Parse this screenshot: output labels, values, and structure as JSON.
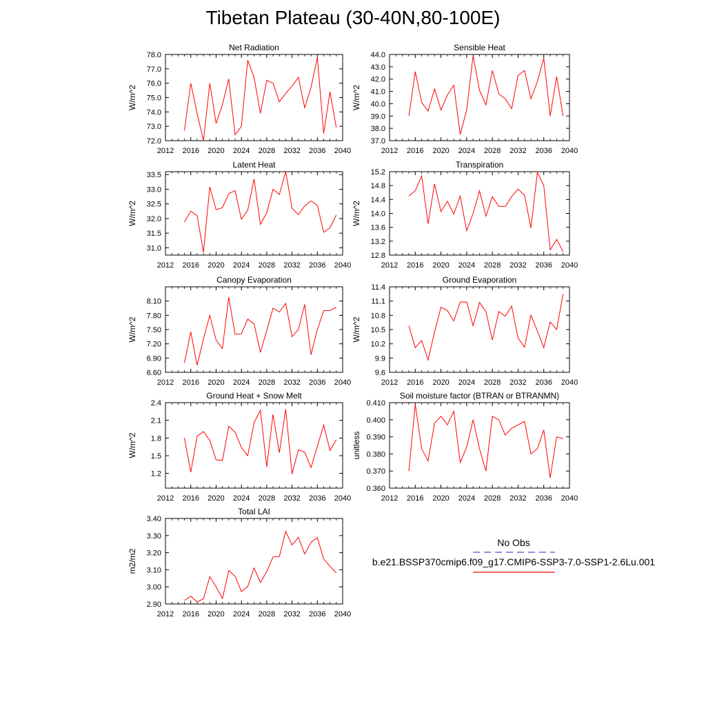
{
  "title": "Tibetan Plateau (30-40N,80-100E)",
  "legend": {
    "obs_label": "No Obs",
    "case_label": "b.e21.BSSP370cmip6.f09_g17.CMIP6-SSP3-7.0-SSP1-2.6Lu.001",
    "obs_color": "#5050c8",
    "case_color": "#ff0000"
  },
  "chart_data": [
    {
      "type": "line",
      "title": "Net Radiation",
      "xlabel": "",
      "ylabel": "W/m^2",
      "xlim": [
        2012,
        2040
      ],
      "xticks": [
        2012,
        2016,
        2020,
        2024,
        2028,
        2032,
        2036,
        2040
      ],
      "ylim": [
        72.0,
        78.0
      ],
      "yticks": [
        72.0,
        73.0,
        74.0,
        75.0,
        76.0,
        77.0,
        78.0
      ],
      "ytick_decimals": 1,
      "series": [
        {
          "color": "#ff0000",
          "x": [
            2015,
            2016,
            2017,
            2018,
            2019,
            2020,
            2021,
            2022,
            2023,
            2024,
            2025,
            2026,
            2027,
            2028,
            2029,
            2030,
            2031,
            2032,
            2033,
            2034,
            2035,
            2036,
            2037,
            2038,
            2039
          ],
          "y": [
            72.7,
            76.0,
            73.9,
            72.0,
            76.0,
            73.2,
            74.5,
            76.3,
            72.4,
            73.0,
            77.6,
            76.4,
            73.9,
            76.2,
            76.0,
            74.7,
            75.3,
            75.8,
            76.4,
            74.3,
            75.7,
            77.8,
            72.5,
            75.4,
            72.9
          ]
        }
      ]
    },
    {
      "type": "line",
      "title": "Sensible Heat",
      "xlabel": "",
      "ylabel": "W/m^2",
      "xlim": [
        2012,
        2040
      ],
      "xticks": [
        2012,
        2016,
        2020,
        2024,
        2028,
        2032,
        2036,
        2040
      ],
      "ylim": [
        37.0,
        44.0
      ],
      "yticks": [
        37.0,
        38.0,
        39.0,
        40.0,
        41.0,
        42.0,
        43.0,
        44.0
      ],
      "ytick_decimals": 1,
      "series": [
        {
          "color": "#ff0000",
          "x": [
            2015,
            2016,
            2017,
            2018,
            2019,
            2020,
            2021,
            2022,
            2023,
            2024,
            2025,
            2026,
            2027,
            2028,
            2029,
            2030,
            2031,
            2032,
            2033,
            2034,
            2035,
            2036,
            2037,
            2038,
            2039
          ],
          "y": [
            39.0,
            42.6,
            40.1,
            39.4,
            41.2,
            39.5,
            40.7,
            41.5,
            37.5,
            39.5,
            43.9,
            41.1,
            39.9,
            42.7,
            40.8,
            40.4,
            39.6,
            42.3,
            42.7,
            40.4,
            41.8,
            43.7,
            39.0,
            42.2,
            39.0
          ]
        }
      ]
    },
    {
      "type": "line",
      "title": "Latent Heat",
      "xlabel": "",
      "ylabel": "W/m^2",
      "xlim": [
        2012,
        2040
      ],
      "xticks": [
        2012,
        2016,
        2020,
        2024,
        2028,
        2032,
        2036,
        2040
      ],
      "ylim": [
        30.75,
        33.6
      ],
      "yticks": [
        31.0,
        31.5,
        32.0,
        32.5,
        33.0,
        33.5
      ],
      "ytick_decimals": 1,
      "series": [
        {
          "color": "#ff0000",
          "x": [
            2015,
            2016,
            2017,
            2018,
            2019,
            2020,
            2021,
            2022,
            2023,
            2024,
            2025,
            2026,
            2027,
            2028,
            2029,
            2030,
            2031,
            2032,
            2033,
            2034,
            2035,
            2036,
            2037,
            2038,
            2039
          ],
          "y": [
            31.88,
            32.25,
            32.1,
            30.85,
            33.08,
            32.3,
            32.37,
            32.85,
            32.95,
            31.98,
            32.28,
            33.35,
            31.8,
            32.2,
            33.0,
            32.82,
            33.6,
            32.35,
            32.13,
            32.43,
            32.6,
            32.45,
            31.53,
            31.68,
            32.12
          ]
        }
      ]
    },
    {
      "type": "line",
      "title": "Transpiration",
      "xlabel": "",
      "ylabel": "W/m^2",
      "xlim": [
        2012,
        2040
      ],
      "xticks": [
        2012,
        2016,
        2020,
        2024,
        2028,
        2032,
        2036,
        2040
      ],
      "ylim": [
        12.8,
        15.2
      ],
      "yticks": [
        12.8,
        13.2,
        13.6,
        14.0,
        14.4,
        14.8,
        15.2
      ],
      "ytick_decimals": 1,
      "series": [
        {
          "color": "#ff0000",
          "x": [
            2015,
            2016,
            2017,
            2018,
            2019,
            2020,
            2021,
            2022,
            2023,
            2024,
            2025,
            2026,
            2027,
            2028,
            2029,
            2030,
            2031,
            2032,
            2033,
            2034,
            2035,
            2036,
            2037,
            2038,
            2039
          ],
          "y": [
            14.5,
            14.65,
            15.08,
            13.7,
            14.85,
            14.05,
            14.35,
            13.98,
            14.5,
            13.5,
            14.0,
            14.65,
            13.92,
            14.48,
            14.2,
            14.2,
            14.48,
            14.7,
            14.52,
            13.58,
            15.18,
            14.8,
            12.95,
            13.25,
            12.9
          ]
        }
      ]
    },
    {
      "type": "line",
      "title": "Canopy Evaporation",
      "xlabel": "",
      "ylabel": "W/m^2",
      "xlim": [
        2012,
        2040
      ],
      "xticks": [
        2012,
        2016,
        2020,
        2024,
        2028,
        2032,
        2036,
        2040
      ],
      "ylim": [
        6.6,
        8.4
      ],
      "yticks": [
        6.6,
        6.9,
        7.2,
        7.5,
        7.8,
        8.1
      ],
      "ytick_decimals": 2,
      "series": [
        {
          "color": "#ff0000",
          "x": [
            2015,
            2016,
            2017,
            2018,
            2019,
            2020,
            2021,
            2022,
            2023,
            2024,
            2025,
            2026,
            2027,
            2028,
            2029,
            2030,
            2031,
            2032,
            2033,
            2034,
            2035,
            2036,
            2037,
            2038,
            2039
          ],
          "y": [
            6.8,
            7.45,
            6.75,
            7.3,
            7.8,
            7.28,
            7.1,
            8.18,
            7.4,
            7.41,
            7.72,
            7.62,
            7.02,
            7.48,
            7.95,
            7.87,
            8.05,
            7.35,
            7.5,
            8.03,
            6.97,
            7.5,
            7.9,
            7.9,
            7.97
          ]
        }
      ]
    },
    {
      "type": "line",
      "title": "Ground Evaporation",
      "xlabel": "",
      "ylabel": "W/m^2",
      "xlim": [
        2012,
        2040
      ],
      "xticks": [
        2012,
        2016,
        2020,
        2024,
        2028,
        2032,
        2036,
        2040
      ],
      "ylim": [
        9.6,
        11.4
      ],
      "yticks": [
        9.6,
        9.9,
        10.2,
        10.5,
        10.8,
        11.1,
        11.4
      ],
      "ytick_decimals": 1,
      "series": [
        {
          "color": "#ff0000",
          "x": [
            2015,
            2016,
            2017,
            2018,
            2019,
            2020,
            2021,
            2022,
            2023,
            2024,
            2025,
            2026,
            2027,
            2028,
            2029,
            2030,
            2031,
            2032,
            2033,
            2034,
            2035,
            2036,
            2037,
            2038,
            2039
          ],
          "y": [
            10.58,
            10.12,
            10.27,
            9.86,
            10.45,
            10.97,
            10.9,
            10.68,
            11.08,
            11.08,
            10.58,
            11.07,
            10.88,
            10.28,
            10.88,
            10.78,
            10.99,
            10.32,
            10.13,
            10.8,
            10.47,
            10.12,
            10.66,
            10.5,
            11.25
          ]
        }
      ]
    },
    {
      "type": "line",
      "title": "Ground Heat + Snow Melt",
      "xlabel": "",
      "ylabel": "W/m^2",
      "xlim": [
        2012,
        2040
      ],
      "xticks": [
        2012,
        2016,
        2020,
        2024,
        2028,
        2032,
        2036,
        2040
      ],
      "ylim": [
        0.95,
        2.4
      ],
      "yticks": [
        1.2,
        1.5,
        1.8,
        2.1,
        2.4
      ],
      "ytick_decimals": 1,
      "series": [
        {
          "color": "#ff0000",
          "x": [
            2015,
            2016,
            2017,
            2018,
            2019,
            2020,
            2021,
            2022,
            2023,
            2024,
            2025,
            2026,
            2027,
            2028,
            2029,
            2030,
            2031,
            2032,
            2033,
            2034,
            2035,
            2036,
            2037,
            2038,
            2039
          ],
          "y": [
            1.8,
            1.22,
            1.83,
            1.91,
            1.76,
            1.43,
            1.42,
            2.0,
            1.9,
            1.64,
            1.5,
            2.06,
            2.27,
            1.31,
            2.2,
            1.55,
            2.29,
            1.19,
            1.6,
            1.56,
            1.3,
            1.66,
            2.02,
            1.59,
            1.77
          ]
        }
      ]
    },
    {
      "type": "line",
      "title": "Soil moisture factor (BTRAN or BTRANMN)",
      "xlabel": "",
      "ylabel": "unitless",
      "xlim": [
        2012,
        2040
      ],
      "xticks": [
        2012,
        2016,
        2020,
        2024,
        2028,
        2032,
        2036,
        2040
      ],
      "ylim": [
        0.36,
        0.41
      ],
      "yticks": [
        0.36,
        0.37,
        0.38,
        0.39,
        0.4,
        0.41
      ],
      "ytick_decimals": 3,
      "series": [
        {
          "color": "#ff0000",
          "x": [
            2015,
            2016,
            2017,
            2018,
            2019,
            2020,
            2021,
            2022,
            2023,
            2024,
            2025,
            2026,
            2027,
            2028,
            2029,
            2030,
            2031,
            2032,
            2033,
            2034,
            2035,
            2036,
            2037,
            2038,
            2039
          ],
          "y": [
            0.37,
            0.409,
            0.383,
            0.376,
            0.398,
            0.402,
            0.397,
            0.405,
            0.375,
            0.384,
            0.4,
            0.383,
            0.37,
            0.402,
            0.4,
            0.391,
            0.395,
            0.397,
            0.399,
            0.38,
            0.383,
            0.394,
            0.366,
            0.39,
            0.389
          ]
        }
      ]
    },
    {
      "type": "line",
      "title": "Total LAI",
      "xlabel": "",
      "ylabel": "m2/m2",
      "xlim": [
        2012,
        2040
      ],
      "xticks": [
        2012,
        2016,
        2020,
        2024,
        2028,
        2032,
        2036,
        2040
      ],
      "ylim": [
        2.9,
        3.4
      ],
      "yticks": [
        2.9,
        3.0,
        3.1,
        3.2,
        3.3,
        3.4
      ],
      "ytick_decimals": 2,
      "series": [
        {
          "color": "#ff0000",
          "x": [
            2015,
            2016,
            2017,
            2018,
            2019,
            2020,
            2021,
            2022,
            2023,
            2024,
            2025,
            2026,
            2027,
            2028,
            2029,
            2030,
            2031,
            2032,
            2033,
            2034,
            2035,
            2036,
            2037,
            2038,
            2039
          ],
          "y": [
            2.92,
            2.945,
            2.912,
            2.93,
            3.06,
            3.0,
            2.932,
            3.095,
            3.062,
            2.973,
            3.002,
            3.11,
            3.025,
            3.09,
            3.175,
            3.177,
            3.325,
            3.245,
            3.29,
            3.192,
            3.26,
            3.288,
            3.163,
            3.12,
            3.082
          ]
        }
      ]
    }
  ]
}
